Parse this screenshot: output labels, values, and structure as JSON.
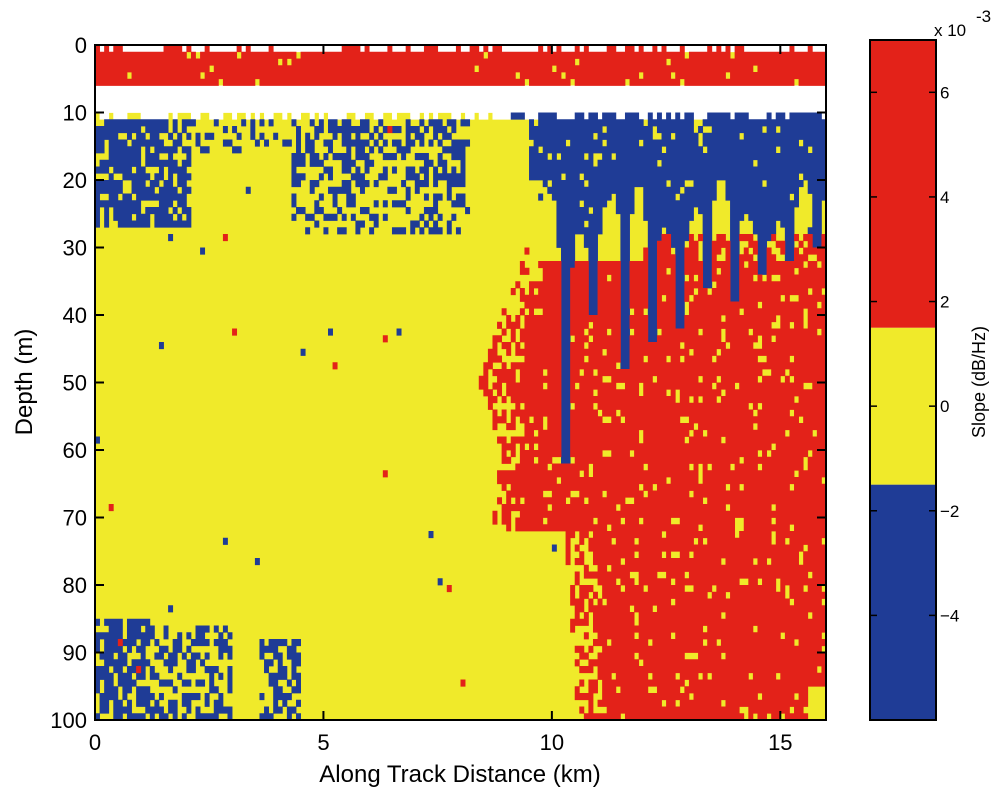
{
  "chart_data": {
    "type": "heatmap",
    "title": "",
    "xlabel": "Along Track Distance (km)",
    "ylabel": "Depth (m)",
    "xlim": [
      0,
      16
    ],
    "ylim": [
      100,
      0
    ],
    "x_ticks": [
      "0",
      "5",
      "10",
      "15"
    ],
    "y_ticks": [
      "0",
      "10",
      "20",
      "30",
      "40",
      "50",
      "60",
      "70",
      "80",
      "90",
      "100"
    ],
    "colorbar": {
      "label": "Slope (dB/Hz)",
      "exponent_label": "x 10",
      "exponent_power": "-3",
      "ticks": [
        "6",
        "4",
        "2",
        "0",
        "−2",
        "−4"
      ],
      "range": [
        -6,
        7
      ],
      "levels": [
        {
          "name": "negative slope",
          "from": -6,
          "to": -1.5,
          "color": "#1f3c96"
        },
        {
          "name": "near zero",
          "from": -1.5,
          "to": 1.5,
          "color": "#f0ea2a"
        },
        {
          "name": "positive slope",
          "from": 1.5,
          "to": 7,
          "color": "#e32219"
        }
      ]
    },
    "regions": [
      {
        "class": "positive",
        "x": [
          0,
          16
        ],
        "depth": [
          1.5,
          6
        ]
      },
      {
        "class": "no-data",
        "x": [
          0,
          16
        ],
        "depth": [
          6,
          10
        ]
      },
      {
        "class": "negative",
        "x": [
          0,
          2
        ],
        "depth": [
          11,
          27
        ]
      },
      {
        "class": "negative",
        "x": [
          4,
          8
        ],
        "depth": [
          11,
          28
        ]
      },
      {
        "class": "negative",
        "x": [
          9,
          16
        ],
        "depth": [
          11,
          60
        ]
      },
      {
        "class": "positive",
        "x": [
          8.2,
          16
        ],
        "depth": [
          32,
          100
        ]
      },
      {
        "class": "negative",
        "x": [
          0,
          4.5
        ],
        "depth": [
          85,
          100
        ]
      }
    ]
  }
}
